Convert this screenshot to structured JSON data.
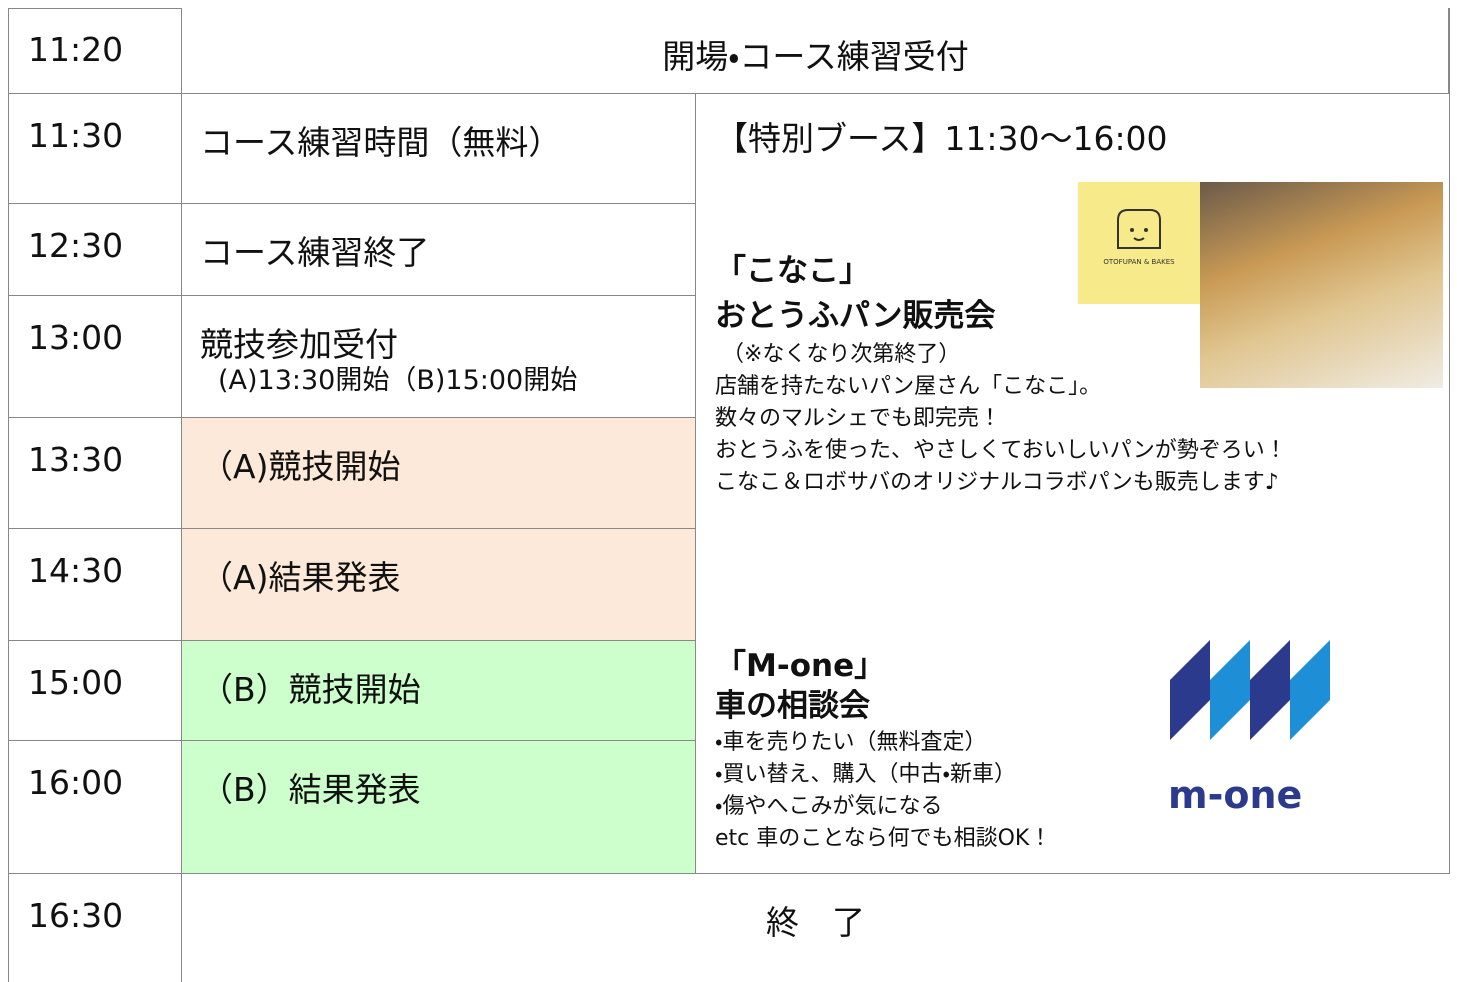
{
  "schedule": {
    "rows": [
      {
        "time": "11:20",
        "event": "開場・コース練習受付"
      },
      {
        "time": "11:30",
        "event": "コース練習時間（無料）"
      },
      {
        "time": "12:30",
        "event": "コース練習終了"
      },
      {
        "time": "13:00",
        "event": "競技参加受付",
        "note": "(A)13:30開始（B)15:00開始"
      },
      {
        "time": "13:30",
        "event": "（A)競技開始"
      },
      {
        "time": "14:30",
        "event": "（A)結果発表"
      },
      {
        "time": "15:00",
        "event": "（B）競技開始"
      },
      {
        "time": "16:00",
        "event": "（B）結果発表"
      },
      {
        "time": "16:30",
        "event": "終　了"
      }
    ]
  },
  "booth": {
    "heading": "【特別ブース】11:30〜16:00",
    "kanako": {
      "title": [
        "「こなこ」",
        "おとうふパン販売会"
      ],
      "note": "（※なくなり次第終了）",
      "lines": [
        "店舗を持たないパン屋さん「こなこ」。",
        "数々のマルシェでも即完売！",
        "おとうふを使った、やさしくておいしいパンが勢ぞろい！",
        "こなこ＆ロボサバのオリジナルコラボパンも販売します♪"
      ],
      "logo": "OTOFUPAN & BAKES"
    },
    "mone": {
      "title": [
        "「M-one」",
        "車の相談会"
      ],
      "lines": [
        "・車を売りたい（無料査定）",
        "・買い替え、購入（中古・新車）",
        "・傷やへこみが気になる",
        "etc 車のことなら何でも相談OK！"
      ],
      "logo": "m-one"
    }
  }
}
